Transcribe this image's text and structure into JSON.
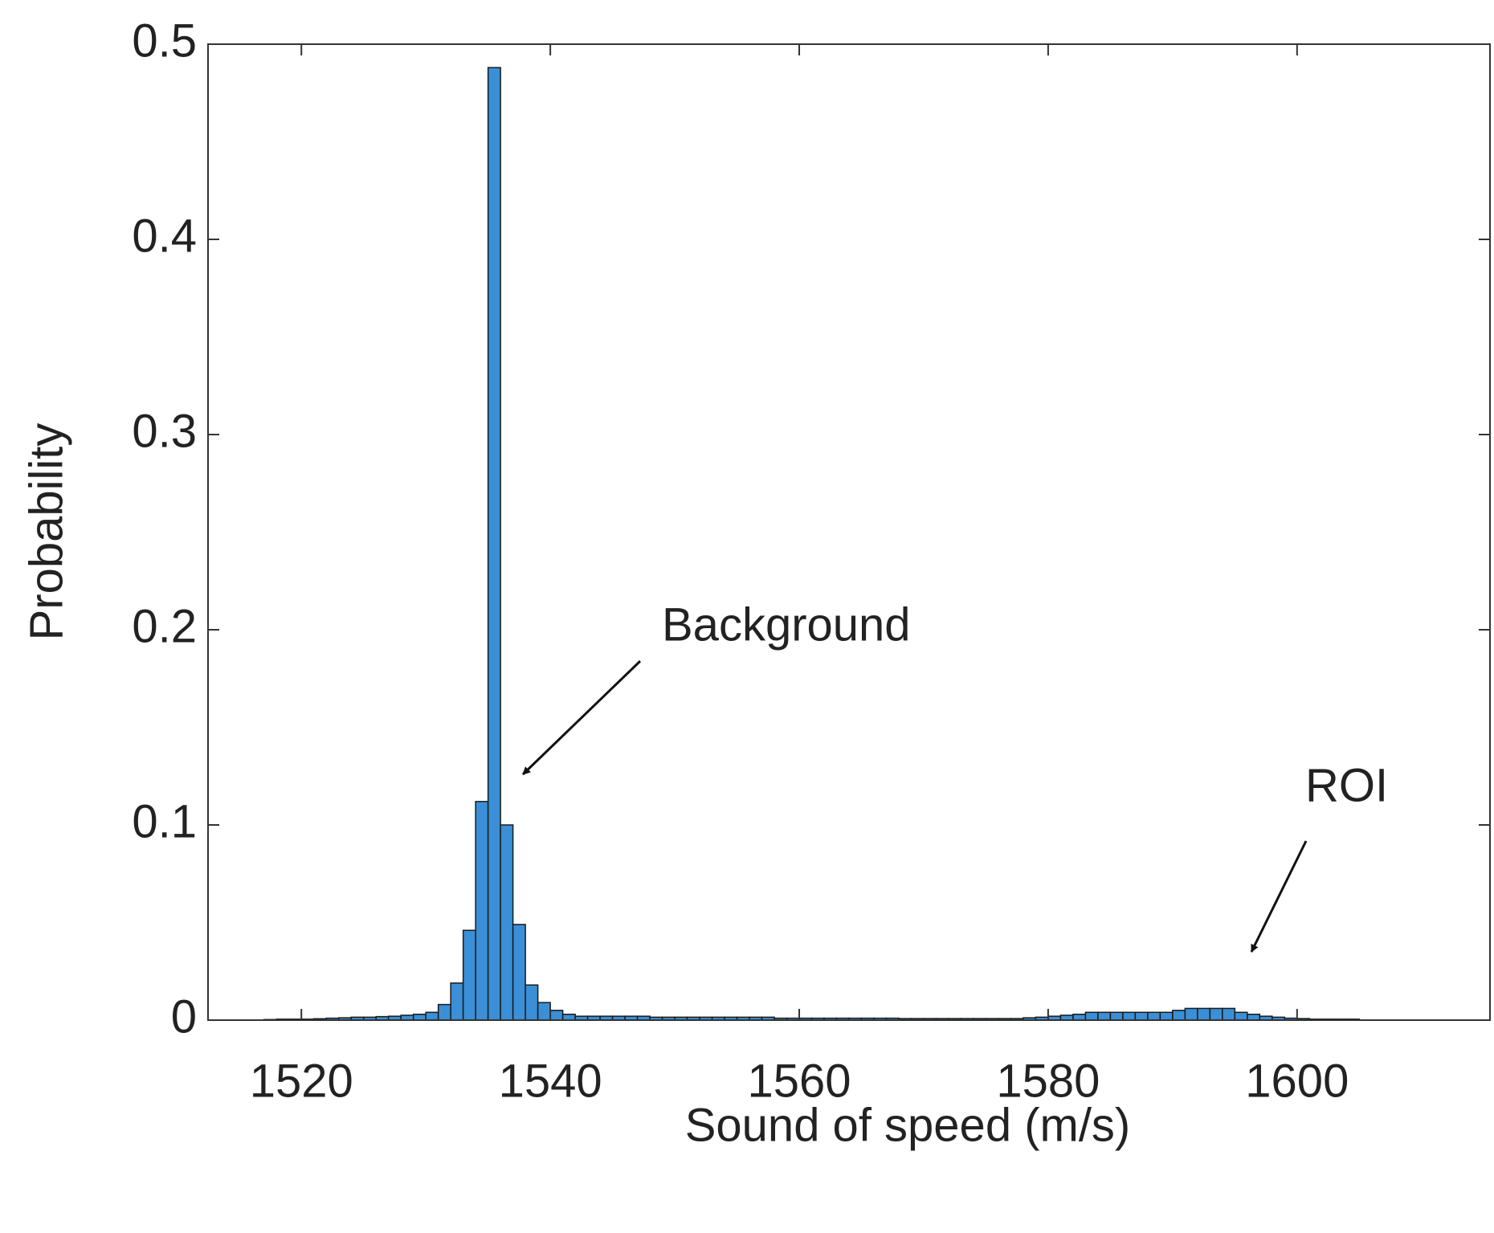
{
  "chart_data": {
    "type": "histogram",
    "xlabel": "Sound of speed (m/s)",
    "ylabel": "Probability",
    "annotations": [
      "Background",
      "ROI"
    ],
    "color": "#3a8fd6",
    "bins": [
      1517,
      1518,
      1519,
      1520,
      1521,
      1522,
      1523,
      1524,
      1525,
      1526,
      1527,
      1528,
      1529,
      1530,
      1531,
      1532,
      1533,
      1534,
      1535,
      1536,
      1537,
      1538,
      1539,
      1540,
      1541,
      1542,
      1543,
      1544,
      1545,
      1546,
      1547,
      1548,
      1549,
      1550,
      1551,
      1552,
      1553,
      1554,
      1555,
      1556,
      1557,
      1558,
      1559,
      1560,
      1561,
      1562,
      1563,
      1564,
      1565,
      1566,
      1567,
      1568,
      1569,
      1570,
      1571,
      1572,
      1573,
      1574,
      1575,
      1576,
      1577,
      1578,
      1579,
      1580,
      1581,
      1582,
      1583,
      1584,
      1585,
      1586,
      1587,
      1588,
      1589,
      1590,
      1591,
      1592,
      1593,
      1594,
      1595,
      1596,
      1597,
      1598,
      1599,
      1600,
      1601,
      1602,
      1603,
      1604,
      1605
    ],
    "values": [
      0.0003,
      0.0005,
      0.0005,
      0.0005,
      0.0007,
      0.001,
      0.0012,
      0.0015,
      0.0015,
      0.0018,
      0.002,
      0.0025,
      0.003,
      0.004,
      0.008,
      0.019,
      0.046,
      0.112,
      0.488,
      0.1,
      0.049,
      0.018,
      0.009,
      0.005,
      0.003,
      0.002,
      0.002,
      0.002,
      0.002,
      0.002,
      0.002,
      0.0015,
      0.0015,
      0.0015,
      0.0015,
      0.0015,
      0.0015,
      0.0015,
      0.0015,
      0.0015,
      0.0015,
      0.001,
      0.001,
      0.001,
      0.001,
      0.001,
      0.001,
      0.001,
      0.001,
      0.001,
      0.001,
      0.0008,
      0.0008,
      0.0008,
      0.0008,
      0.0008,
      0.0008,
      0.0008,
      0.0008,
      0.0008,
      0.0008,
      0.0012,
      0.0015,
      0.002,
      0.0025,
      0.003,
      0.004,
      0.004,
      0.004,
      0.004,
      0.004,
      0.004,
      0.004,
      0.005,
      0.006,
      0.006,
      0.006,
      0.006,
      0.004,
      0.003,
      0.002,
      0.0015,
      0.001,
      0.0008,
      0.0005,
      0.0005,
      0.0005,
      0.0005
    ],
    "xlim": [
      1512.5,
      1615.5
    ],
    "ylim": [
      0,
      0.5
    ],
    "xticks": [
      1520,
      1540,
      1560,
      1580,
      1600
    ],
    "yticks": [
      0,
      0.1,
      0.2,
      0.3,
      0.4,
      0.5
    ]
  }
}
